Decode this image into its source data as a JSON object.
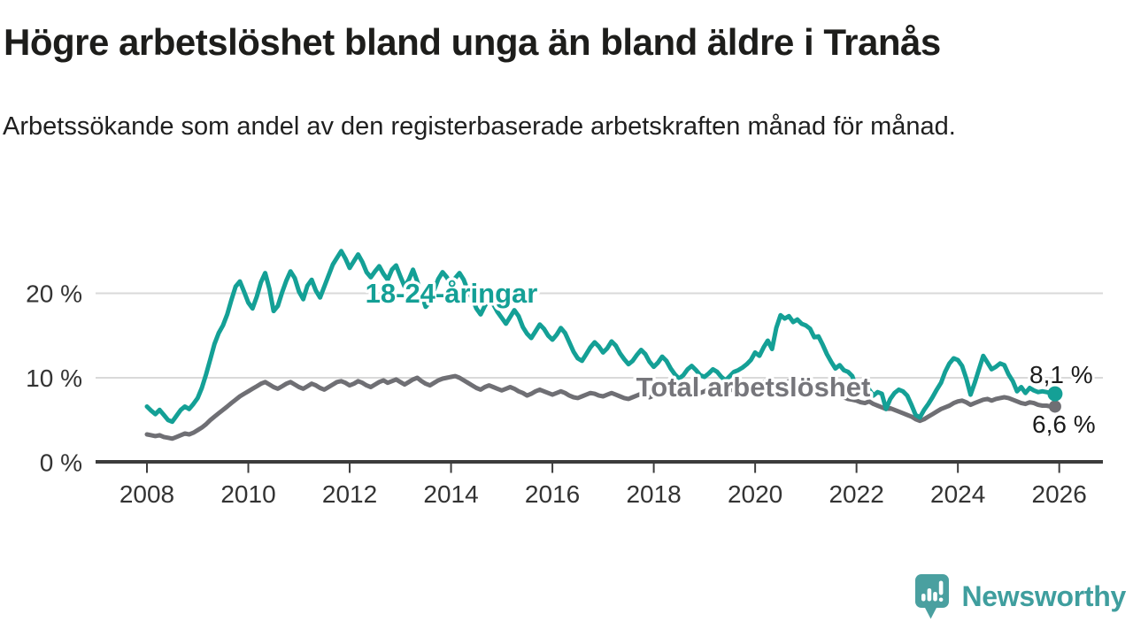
{
  "header": {
    "title": "Högre arbetslöshet bland unga än bland äldre i Tranås",
    "subtitle": "Arbetssökande som andel av den registerbaserade arbetskraften månad för månad."
  },
  "footer": {
    "brand": "Newsworthy",
    "logo_icon": "speech-bubble-bar-chart-icon"
  },
  "colors": {
    "youth_line": "#14a096",
    "total_line": "#6f6f74",
    "total_label": "#76767b",
    "grid": "#d9d9d9",
    "axis": "#3c3c3c",
    "axis_text": "#333333",
    "value_text": "#1b1b1b",
    "logo_teal": "#4aa0a0"
  },
  "chart_data": {
    "type": "line",
    "title": "Högre arbetslöshet bland unga än bland äldre i Tranås",
    "subtitle": "Arbetssökande som andel av den registerbaserade arbetskraften månad för månad.",
    "unit": "%",
    "frequency": "monthly",
    "x_start_year": 2008,
    "x_end_year": 2025,
    "x_axis": {
      "ticks": [
        2008,
        2010,
        2012,
        2014,
        2016,
        2018,
        2020,
        2022,
        2024,
        2026
      ]
    },
    "y_axis": {
      "min": 0,
      "max": 26,
      "grid": true,
      "ticks": [
        {
          "value": 0,
          "label": "0 %"
        },
        {
          "value": 10,
          "label": "10 %"
        },
        {
          "value": 20,
          "label": "20 %"
        }
      ]
    },
    "legend_position": "inline-labels",
    "series": [
      {
        "name": "18-24-åringar",
        "color": "#14a096",
        "end_value_label": "8,1 %",
        "end_marker": true,
        "values": [
          6.6,
          6.1,
          5.7,
          6.2,
          5.6,
          5.0,
          4.8,
          5.5,
          6.2,
          6.6,
          6.3,
          6.9,
          7.6,
          8.8,
          10.4,
          12.2,
          14.0,
          15.3,
          16.2,
          17.5,
          19.2,
          20.8,
          21.4,
          20.2,
          18.9,
          18.2,
          19.6,
          21.3,
          22.4,
          20.5,
          17.9,
          18.5,
          20.1,
          21.5,
          22.6,
          21.8,
          20.2,
          19.3,
          20.9,
          21.6,
          20.3,
          19.5,
          20.8,
          22.1,
          23.4,
          24.2,
          25.0,
          24.1,
          23.0,
          23.8,
          24.6,
          23.7,
          22.5,
          21.9,
          22.6,
          23.2,
          22.3,
          21.6,
          22.8,
          23.3,
          22.0,
          20.8,
          21.6,
          22.8,
          21.4,
          19.9,
          18.4,
          19.0,
          20.4,
          21.7,
          22.5,
          21.9,
          21.0,
          21.8,
          22.4,
          21.6,
          20.3,
          19.4,
          18.2,
          17.5,
          18.5,
          19.3,
          18.7,
          17.8,
          17.1,
          16.4,
          17.2,
          18.0,
          17.3,
          16.0,
          15.2,
          14.7,
          15.5,
          16.3,
          15.8,
          15.0,
          14.5,
          15.1,
          15.9,
          15.3,
          14.2,
          13.1,
          12.3,
          12.0,
          12.8,
          13.6,
          14.2,
          13.7,
          13.0,
          13.5,
          14.3,
          13.8,
          12.9,
          12.2,
          11.6,
          12.0,
          12.7,
          13.3,
          12.8,
          11.9,
          11.3,
          11.8,
          12.5,
          12.0,
          11.1,
          10.4,
          9.9,
          10.3,
          11.0,
          11.4,
          10.9,
          10.3,
          10.1,
          10.5,
          11.0,
          10.7,
          10.1,
          9.7,
          10.2,
          10.7,
          10.9,
          11.2,
          11.6,
          12.1,
          13.0,
          12.6,
          13.6,
          14.4,
          13.4,
          15.9,
          17.4,
          17.0,
          17.3,
          16.6,
          16.9,
          16.4,
          16.2,
          15.8,
          14.8,
          14.9,
          13.9,
          12.8,
          11.9,
          11.1,
          11.5,
          10.9,
          10.7,
          10.2,
          8.7,
          8.6,
          8.2,
          8.6,
          7.9,
          8.3,
          8.1,
          6.3,
          7.5,
          8.2,
          8.6,
          8.4,
          7.9,
          6.8,
          5.6,
          5.3,
          6.2,
          6.9,
          7.7,
          8.6,
          9.4,
          10.7,
          11.7,
          12.3,
          12.1,
          11.4,
          9.9,
          8.0,
          9.4,
          11.0,
          12.6,
          11.8,
          11.0,
          11.3,
          11.7,
          11.5,
          10.4,
          9.6,
          8.4,
          8.9,
          8.2,
          8.8,
          8.5,
          8.3,
          8.4,
          8.3,
          8.2,
          8.1
        ]
      },
      {
        "name": "Total arbetslöshet",
        "color": "#6f6f74",
        "end_value_label": "6,6 %",
        "end_marker": true,
        "values": [
          3.3,
          3.2,
          3.1,
          3.2,
          3.0,
          2.9,
          2.8,
          3.0,
          3.2,
          3.4,
          3.3,
          3.5,
          3.8,
          4.1,
          4.5,
          5.0,
          5.4,
          5.8,
          6.2,
          6.6,
          7.0,
          7.4,
          7.8,
          8.1,
          8.4,
          8.7,
          9.0,
          9.3,
          9.5,
          9.2,
          8.9,
          8.7,
          9.0,
          9.3,
          9.5,
          9.2,
          8.9,
          8.7,
          9.0,
          9.3,
          9.1,
          8.8,
          8.6,
          8.9,
          9.2,
          9.5,
          9.6,
          9.4,
          9.1,
          9.3,
          9.6,
          9.4,
          9.1,
          8.9,
          9.2,
          9.5,
          9.7,
          9.4,
          9.6,
          9.8,
          9.5,
          9.2,
          9.5,
          9.8,
          10.0,
          9.6,
          9.3,
          9.1,
          9.4,
          9.7,
          9.9,
          10.0,
          10.1,
          10.2,
          10.0,
          9.7,
          9.4,
          9.1,
          8.8,
          8.6,
          8.9,
          9.1,
          8.9,
          8.7,
          8.5,
          8.7,
          8.9,
          8.7,
          8.4,
          8.2,
          7.9,
          8.1,
          8.4,
          8.6,
          8.4,
          8.2,
          8.0,
          8.2,
          8.4,
          8.2,
          7.9,
          7.7,
          7.6,
          7.8,
          8.0,
          8.2,
          8.1,
          7.9,
          7.8,
          8.0,
          8.2,
          8.0,
          7.8,
          7.6,
          7.5,
          7.7,
          7.9,
          8.1,
          7.9,
          7.7,
          7.9,
          8.1,
          8.3,
          8.1,
          7.9,
          7.8,
          8.0,
          8.2,
          8.4,
          8.6,
          8.4,
          8.2,
          8.4,
          8.6,
          8.8,
          8.6,
          8.4,
          8.3,
          8.5,
          8.7,
          8.9,
          8.7,
          8.6,
          8.8,
          9.0,
          9.2,
          9.5,
          9.7,
          9.6,
          9.4,
          9.2,
          9.4,
          9.6,
          9.4,
          9.2,
          9.0,
          9.2,
          9.4,
          9.1,
          8.9,
          8.7,
          8.5,
          8.3,
          8.1,
          7.9,
          7.7,
          7.5,
          7.4,
          7.3,
          7.1,
          7.0,
          7.2,
          6.9,
          6.7,
          6.5,
          6.3,
          6.4,
          6.2,
          6.0,
          5.8,
          5.6,
          5.4,
          5.1,
          4.9,
          5.1,
          5.4,
          5.7,
          6.0,
          6.3,
          6.5,
          6.7,
          7.0,
          7.2,
          7.3,
          7.1,
          6.8,
          7.0,
          7.2,
          7.4,
          7.5,
          7.3,
          7.5,
          7.6,
          7.7,
          7.6,
          7.4,
          7.2,
          7.0,
          6.9,
          7.1,
          7.0,
          6.8,
          6.7,
          6.7,
          6.6,
          6.6
        ]
      }
    ]
  }
}
